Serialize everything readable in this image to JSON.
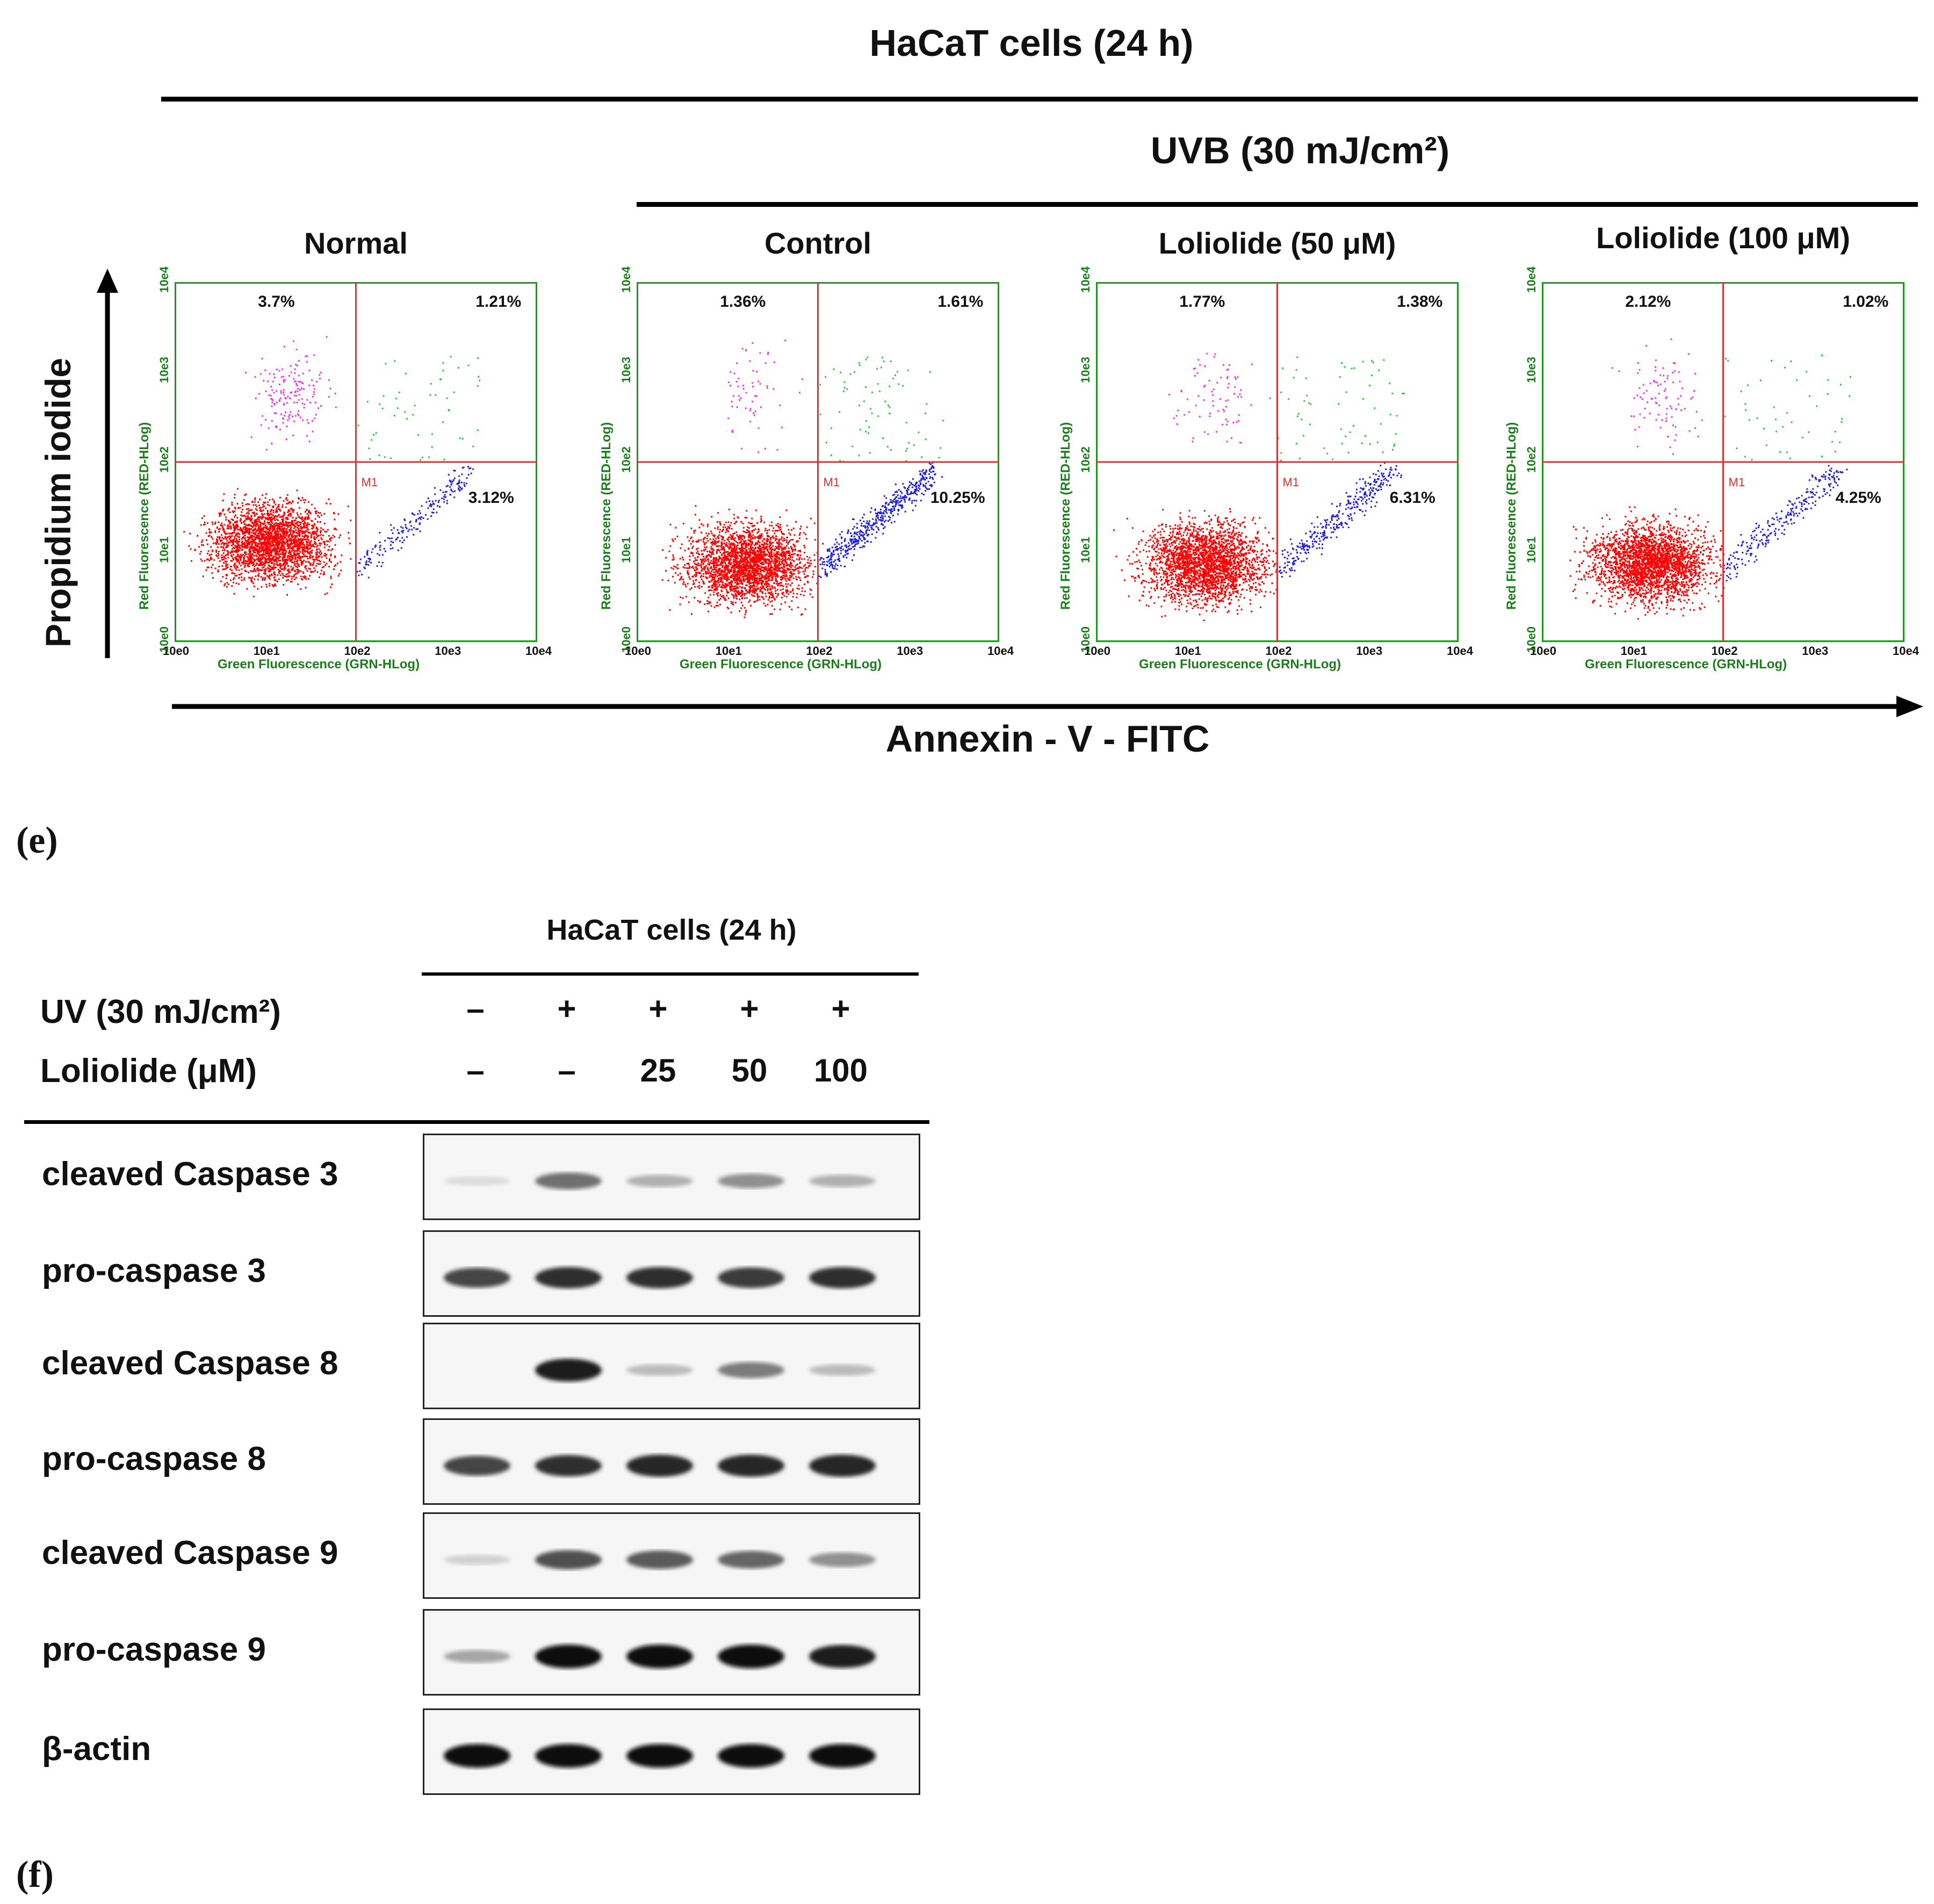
{
  "panel_e": {
    "title": "HaCaT cells (24 h)",
    "uvb_label": "UVB (30 mJ/cm²)",
    "y_axis_label": "Propidium iodide",
    "x_axis_label": "Annexin - V - FITC",
    "panel_letter": "(e)",
    "plot_x_label": "Green Fluorescence (GRN-HLog)",
    "plot_y_label": "Red Fluorescence (RED-HLog)",
    "tick_labels": [
      "10e0",
      "10e1",
      "10e2",
      "10e3",
      "10e4"
    ],
    "gate_label": "M1",
    "colors": {
      "frame": "#1a9a1a",
      "gate": "#e03030",
      "live": "#ff0000",
      "early": "#2222dd",
      "late": "#22cc33",
      "necrotic": "#ee33ee"
    },
    "plots": [
      {
        "title": "Normal",
        "upper_left": "3.7%",
        "upper_right": "1.21%",
        "lower_right": "3.12%"
      },
      {
        "title": "Control",
        "upper_left": "1.36%",
        "upper_right": "1.61%",
        "lower_right": "10.25%"
      },
      {
        "title": "Loliolide (50 μM)",
        "upper_left": "1.77%",
        "upper_right": "1.38%",
        "lower_right": "6.31%"
      },
      {
        "title": "Loliolide (100 μM)",
        "upper_left": "2.12%",
        "upper_right": "1.02%",
        "lower_right": "4.25%"
      }
    ]
  },
  "panel_f": {
    "title": "HaCaT cells (24 h)",
    "uv_label": "UV (30 mJ/cm²)",
    "loliolide_label": "Loliolide (μM)",
    "uv_values": [
      "–",
      "+",
      "+",
      "+",
      "+"
    ],
    "loliolide_values": [
      "–",
      "–",
      "25",
      "50",
      "100"
    ],
    "panel_letter": "(f)",
    "blots": [
      {
        "label": "cleaved Caspase 3",
        "intensities": [
          0.05,
          0.55,
          0.25,
          0.4,
          0.25
        ]
      },
      {
        "label": "pro-caspase 3",
        "intensities": [
          0.75,
          0.85,
          0.85,
          0.8,
          0.85
        ]
      },
      {
        "label": "cleaved Caspase 8",
        "intensities": [
          0.0,
          0.95,
          0.2,
          0.5,
          0.2
        ]
      },
      {
        "label": "pro-caspase 8",
        "intensities": [
          0.75,
          0.85,
          0.9,
          0.9,
          0.9
        ]
      },
      {
        "label": "cleaved Caspase 9",
        "intensities": [
          0.1,
          0.7,
          0.65,
          0.6,
          0.4
        ]
      },
      {
        "label": "pro-caspase 9",
        "intensities": [
          0.3,
          1.0,
          1.0,
          1.0,
          0.95
        ]
      },
      {
        "label": "β-actin",
        "intensities": [
          1.0,
          1.0,
          1.0,
          1.0,
          1.0
        ]
      }
    ]
  }
}
